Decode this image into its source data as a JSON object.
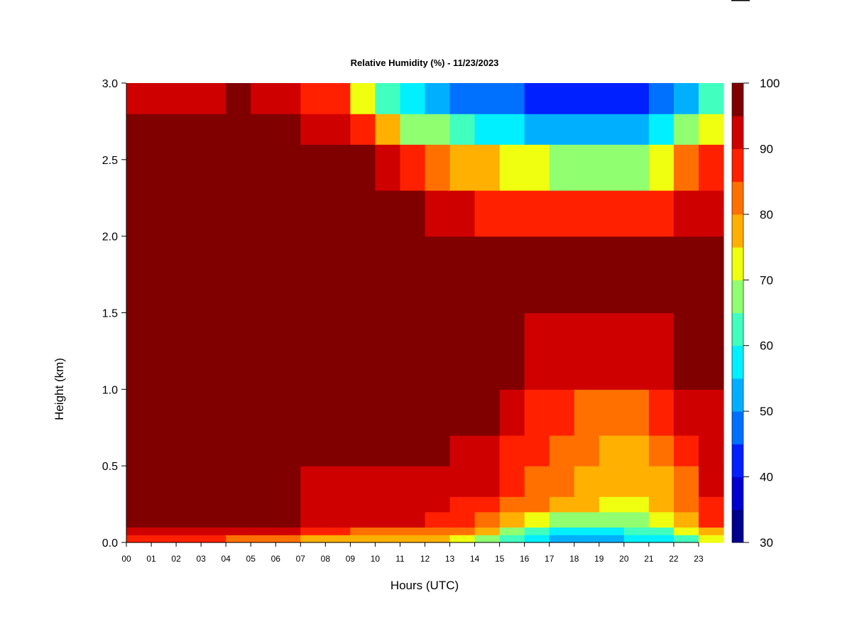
{
  "chart_data": {
    "type": "heatmap",
    "title": "Relative Humidity (%) - 11/23/2023",
    "xlabel": "Hours (UTC)",
    "ylabel": "Height (km)",
    "x_ticks": [
      "00",
      "01",
      "02",
      "03",
      "04",
      "05",
      "06",
      "07",
      "08",
      "09",
      "10",
      "11",
      "12",
      "13",
      "14",
      "15",
      "16",
      "17",
      "18",
      "19",
      "20",
      "21",
      "22",
      "23"
    ],
    "y_ticks": [
      "0.0",
      "0.5",
      "1.0",
      "1.5",
      "2.0",
      "2.5",
      "3.0"
    ],
    "xlim": [
      0,
      24
    ],
    "ylim": [
      0,
      3.0
    ],
    "colorbar": {
      "min": 30,
      "max": 100,
      "step": 5,
      "labels": [
        "30",
        "40",
        "50",
        "60",
        "70",
        "80",
        "90",
        "100"
      ],
      "colors": [
        "#00008f",
        "#0000cf",
        "#0020ff",
        "#0070ff",
        "#00b0ff",
        "#00f0ff",
        "#40ffbf",
        "#90ff70",
        "#f0ff10",
        "#ffb000",
        "#ff7000",
        "#ff2000",
        "#cf0000",
        "#800000"
      ]
    },
    "grid": false,
    "x_values_hours": [
      0,
      1,
      2,
      3,
      4,
      5,
      6,
      7,
      8,
      9,
      10,
      11,
      12,
      13,
      14,
      15,
      16,
      17,
      18,
      19,
      20,
      21,
      22,
      23,
      24
    ],
    "y_values_km": [
      0.0,
      0.05,
      0.1,
      0.2,
      0.3,
      0.5,
      0.7,
      1.0,
      1.5,
      2.0,
      2.3,
      2.6,
      2.8,
      3.0
    ],
    "rh_percent": [
      [
        82,
        90,
        96,
        100,
        100,
        100,
        100,
        100,
        100,
        100,
        100,
        100,
        95,
        92
      ],
      [
        80,
        88,
        95,
        100,
        100,
        100,
        100,
        100,
        100,
        100,
        100,
        100,
        94,
        90
      ],
      [
        84,
        92,
        97,
        97,
        98,
        100,
        100,
        100,
        100,
        100,
        100,
        100,
        96,
        92
      ],
      [
        85,
        91,
        96,
        98,
        98,
        98,
        100,
        100,
        100,
        100,
        100,
        100,
        96,
        92
      ],
      [
        83,
        90,
        96,
        98,
        98,
        97,
        100,
        100,
        100,
        100,
        100,
        100,
        96,
        93
      ],
      [
        78,
        86,
        94,
        96,
        96,
        96,
        98,
        100,
        100,
        100,
        100,
        100,
        97,
        94
      ],
      [
        82,
        90,
        96,
        100,
        100,
        100,
        100,
        100,
        100,
        100,
        100,
        100,
        96,
        92
      ],
      [
        76,
        84,
        92,
        95,
        95,
        96,
        97,
        100,
        100,
        100,
        100,
        98,
        94,
        90
      ],
      [
        74,
        82,
        90,
        93,
        94,
        94,
        96,
        100,
        100,
        100,
        100,
        96,
        90,
        84
      ],
      [
        73,
        80,
        89,
        93,
        93,
        94,
        96,
        100,
        100,
        100,
        100,
        96,
        86,
        80
      ],
      [
        74,
        80,
        88,
        92,
        93,
        94,
        97,
        100,
        100,
        100,
        100,
        92,
        72,
        60
      ],
      [
        74,
        80,
        88,
        92,
        93,
        95,
        98,
        100,
        100,
        100,
        98,
        78,
        60,
        54
      ],
      [
        73,
        80,
        88,
        92,
        93,
        95,
        98,
        100,
        100,
        98,
        92,
        74,
        58,
        48
      ],
      [
        72,
        78,
        86,
        90,
        92,
        94,
        97,
        100,
        100,
        98,
        90,
        72,
        56,
        46
      ],
      [
        68,
        74,
        82,
        86,
        90,
        92,
        96,
        98,
        98,
        96,
        86,
        68,
        52,
        44
      ],
      [
        62,
        68,
        78,
        84,
        88,
        90,
        94,
        96,
        98,
        94,
        82,
        64,
        50,
        42
      ],
      [
        56,
        60,
        70,
        80,
        84,
        86,
        88,
        92,
        96,
        94,
        80,
        62,
        48,
        40
      ],
      [
        52,
        56,
        64,
        76,
        80,
        82,
        84,
        90,
        96,
        94,
        80,
        60,
        46,
        38
      ],
      [
        50,
        54,
        62,
        74,
        78,
        80,
        82,
        88,
        96,
        94,
        78,
        58,
        44,
        36
      ],
      [
        50,
        54,
        62,
        72,
        76,
        78,
        80,
        88,
        96,
        94,
        78,
        58,
        44,
        36
      ],
      [
        52,
        56,
        64,
        72,
        76,
        78,
        80,
        86,
        96,
        94,
        78,
        58,
        46,
        36
      ],
      [
        54,
        58,
        66,
        74,
        76,
        78,
        82,
        88,
        96,
        94,
        78,
        60,
        48,
        38
      ],
      [
        58,
        62,
        70,
        78,
        80,
        80,
        84,
        90,
        96,
        94,
        84,
        68,
        54,
        44
      ],
      [
        66,
        72,
        80,
        86,
        88,
        90,
        92,
        96,
        98,
        96,
        90,
        78,
        62,
        52
      ],
      [
        70,
        76,
        84,
        90,
        90,
        92,
        94,
        96,
        98,
        96,
        92,
        82,
        68,
        58
      ]
    ]
  }
}
